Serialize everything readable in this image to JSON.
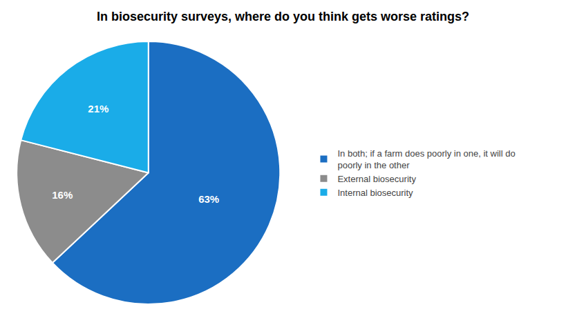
{
  "chart_data": {
    "type": "pie",
    "title": "In biosecurity surveys, where do you think gets worse ratings?",
    "categories": [
      "In both; if a farm does poorly in one, it will do\npoorly in the other",
      "External biosecurity",
      "Internal biosecurity"
    ],
    "values": [
      63,
      16,
      21
    ],
    "value_labels": [
      "63%",
      "16%",
      "21%"
    ],
    "colors": [
      "#1B6EC2",
      "#8C8C8C",
      "#1AACE8"
    ],
    "data_labels": true,
    "legend": "right"
  }
}
